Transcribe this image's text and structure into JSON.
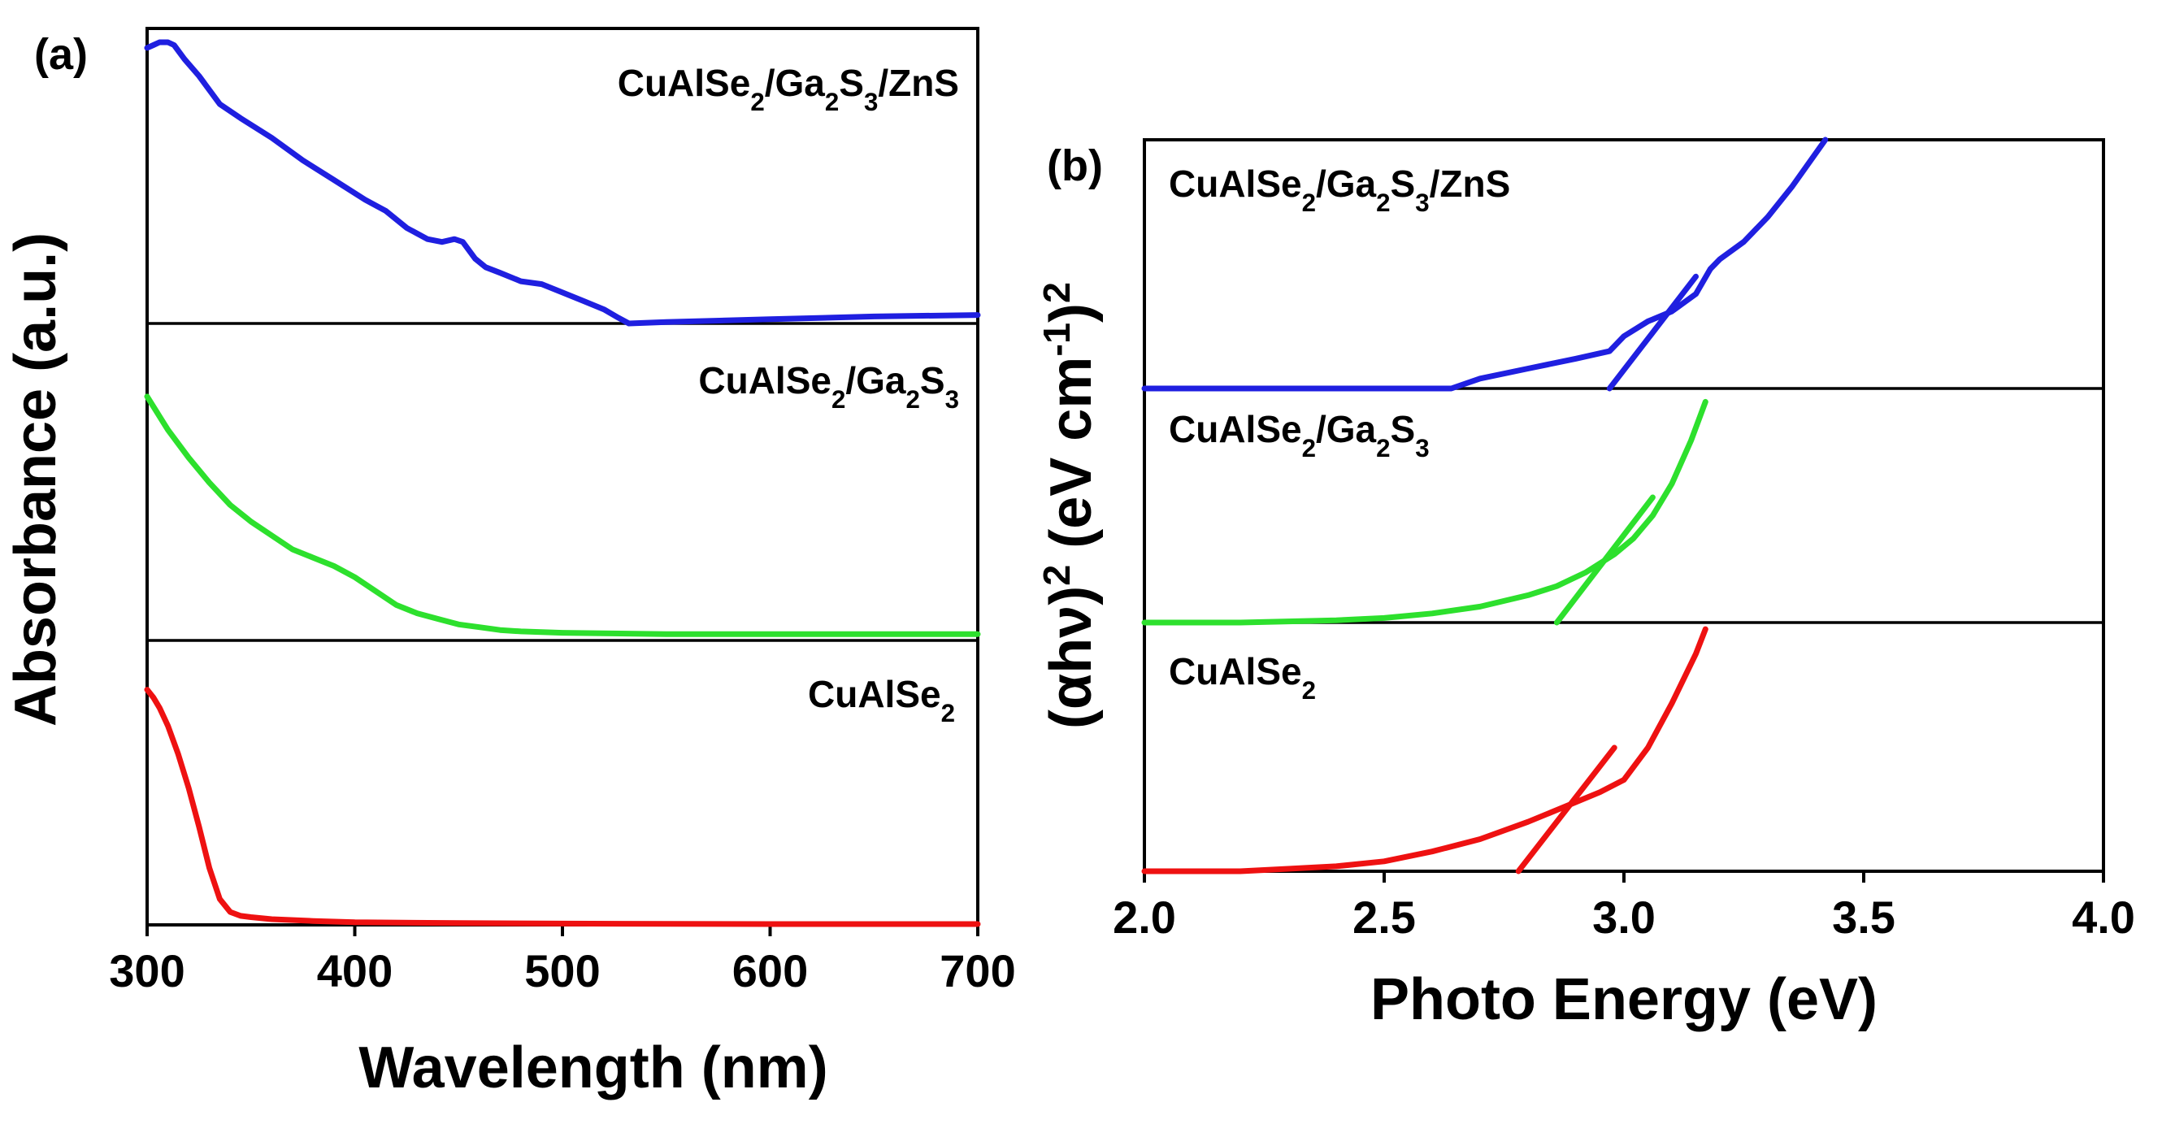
{
  "chart_data": [
    {
      "type": "line",
      "panel_label": "(a)",
      "xlabel": "Wavelength (nm)",
      "ylabel": "Absorbance (a.u.)",
      "xlim": [
        300,
        700
      ],
      "xticks": [
        "300",
        "400",
        "500",
        "600",
        "700"
      ],
      "y_units": "arbitrary (stacked, normalized per band)",
      "series": [
        {
          "name": "CuAlSe2/Ga2S3/ZnS",
          "label_parts": [
            [
              "CuAlSe",
              false
            ],
            [
              "2",
              true
            ],
            [
              "/Ga",
              false
            ],
            [
              "2",
              true
            ],
            [
              "S",
              false
            ],
            [
              "3",
              true
            ],
            [
              "/ZnS",
              false
            ]
          ],
          "color": "#1f1fe0",
          "x": [
            300,
            303,
            306,
            310,
            313,
            318,
            325,
            335,
            345,
            360,
            375,
            390,
            405,
            415,
            425,
            435,
            442,
            448,
            452,
            458,
            463,
            470,
            480,
            490,
            500,
            510,
            520,
            527,
            532,
            550,
            600,
            650,
            700
          ],
          "y": [
            0.98,
            0.99,
            1.0,
            1.0,
            0.99,
            0.94,
            0.88,
            0.78,
            0.73,
            0.66,
            0.58,
            0.51,
            0.44,
            0.4,
            0.34,
            0.3,
            0.29,
            0.3,
            0.29,
            0.23,
            0.2,
            0.18,
            0.15,
            0.14,
            0.11,
            0.08,
            0.05,
            0.02,
            0.0,
            0.005,
            0.015,
            0.025,
            0.03
          ]
        },
        {
          "name": "CuAlSe2/Ga2S3",
          "label_parts": [
            [
              "CuAlSe",
              false
            ],
            [
              "2",
              true
            ],
            [
              "/Ga",
              false
            ],
            [
              "2",
              true
            ],
            [
              "S",
              false
            ],
            [
              "3",
              true
            ]
          ],
          "color": "#2de02d",
          "x": [
            300,
            305,
            310,
            320,
            330,
            340,
            350,
            360,
            370,
            380,
            390,
            400,
            410,
            420,
            430,
            440,
            450,
            460,
            470,
            480,
            500,
            550,
            600,
            650,
            700
          ],
          "y": [
            0.86,
            0.8,
            0.74,
            0.64,
            0.55,
            0.47,
            0.41,
            0.36,
            0.31,
            0.28,
            0.25,
            0.21,
            0.16,
            0.11,
            0.08,
            0.06,
            0.04,
            0.03,
            0.02,
            0.015,
            0.01,
            0.005,
            0.005,
            0.005,
            0.005
          ]
        },
        {
          "name": "CuAlSe2",
          "label_parts": [
            [
              "CuAlSe",
              false
            ],
            [
              "2",
              true
            ]
          ],
          "color": "#ee1111",
          "x": [
            300,
            303,
            306,
            310,
            315,
            320,
            325,
            330,
            335,
            340,
            345,
            350,
            360,
            380,
            400,
            450,
            500,
            600,
            700
          ],
          "y": [
            0.91,
            0.88,
            0.84,
            0.77,
            0.66,
            0.53,
            0.38,
            0.22,
            0.1,
            0.05,
            0.035,
            0.03,
            0.022,
            0.015,
            0.01,
            0.007,
            0.005,
            0.003,
            0.003
          ]
        }
      ]
    },
    {
      "type": "line",
      "panel_label": "(b)",
      "xlabel": "Photo Energy (eV)",
      "ylabel_parts": [
        [
          "(αhν)",
          false
        ],
        [
          "2",
          true
        ],
        [
          " (eV cm",
          false
        ],
        [
          "-1",
          true
        ],
        [
          ")",
          false
        ],
        [
          "2",
          true
        ]
      ],
      "xlim": [
        2.0,
        4.0
      ],
      "xticks": [
        "2.0",
        "2.5",
        "3.0",
        "3.5",
        "4.0"
      ],
      "y_units": "arbitrary (stacked, normalized per band)",
      "series": [
        {
          "name": "CuAlSe2/Ga2S3/ZnS",
          "label_parts": [
            [
              "CuAlSe",
              false
            ],
            [
              "2",
              true
            ],
            [
              "/Ga",
              false
            ],
            [
              "2",
              true
            ],
            [
              "S",
              false
            ],
            [
              "3",
              true
            ],
            [
              "/ZnS",
              false
            ]
          ],
          "color": "#1f1fe0",
          "x": [
            2.0,
            2.5,
            2.64,
            2.7,
            2.8,
            2.9,
            2.97,
            3.0,
            3.05,
            3.1,
            3.15,
            3.18,
            3.2,
            3.25,
            3.3,
            3.35,
            3.42
          ],
          "y": [
            0.0,
            0.0,
            0.0,
            0.04,
            0.08,
            0.12,
            0.15,
            0.21,
            0.27,
            0.31,
            0.38,
            0.48,
            0.52,
            0.59,
            0.69,
            0.81,
            1.0
          ],
          "fit_x": [
            2.97,
            3.15
          ],
          "fit_y": [
            0.0,
            0.45
          ]
        },
        {
          "name": "CuAlSe2/Ga2S3",
          "label_parts": [
            [
              "CuAlSe",
              false
            ],
            [
              "2",
              true
            ],
            [
              "/Ga",
              false
            ],
            [
              "2",
              true
            ],
            [
              "S",
              false
            ],
            [
              "3",
              true
            ]
          ],
          "color": "#2de02d",
          "x": [
            2.0,
            2.2,
            2.4,
            2.5,
            2.6,
            2.7,
            2.8,
            2.86,
            2.92,
            2.98,
            3.02,
            3.06,
            3.1,
            3.14,
            3.17
          ],
          "y": [
            0.0,
            0.0,
            0.01,
            0.02,
            0.04,
            0.07,
            0.12,
            0.16,
            0.22,
            0.3,
            0.37,
            0.47,
            0.61,
            0.8,
            0.97
          ],
          "fit_x": [
            2.86,
            3.06
          ],
          "fit_y": [
            0.0,
            0.55
          ]
        },
        {
          "name": "CuAlSe2",
          "label_parts": [
            [
              "CuAlSe",
              false
            ],
            [
              "2",
              true
            ]
          ],
          "color": "#ee1111",
          "x": [
            2.0,
            2.2,
            2.3,
            2.4,
            2.5,
            2.6,
            2.7,
            2.8,
            2.9,
            2.95,
            3.0,
            3.05,
            3.1,
            3.15,
            3.17
          ],
          "y": [
            0.0,
            0.0,
            0.01,
            0.02,
            0.04,
            0.08,
            0.13,
            0.2,
            0.28,
            0.32,
            0.37,
            0.5,
            0.68,
            0.88,
            0.98
          ],
          "fit_x": [
            2.78,
            2.98
          ],
          "fit_y": [
            0.0,
            0.5
          ]
        }
      ]
    }
  ]
}
